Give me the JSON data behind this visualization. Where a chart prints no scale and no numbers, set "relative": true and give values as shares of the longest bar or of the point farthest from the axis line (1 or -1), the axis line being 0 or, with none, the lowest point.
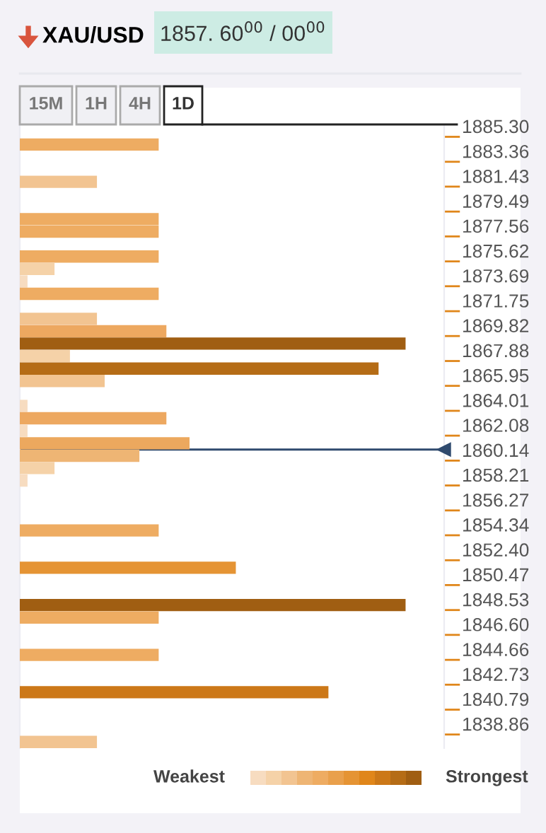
{
  "chart_data": {
    "type": "bar",
    "orientation": "horizontal",
    "relative": true,
    "title": "XAU/USD",
    "subtitle": "1857. 60$^{00}$ / 00$^{00}$",
    "annotations": [
      "15M",
      "1H",
      "4H",
      "1D",
      "Weakest",
      "Strongest"
    ],
    "x": [
      1884.7,
      1881.8,
      1878.9,
      1877.93,
      1876.0,
      1875.03,
      1874.06,
      1873.1,
      1871.16,
      1870.2,
      1869.23,
      1868.26,
      1867.29,
      1866.33,
      1864.39,
      1863.43,
      1862.46,
      1861.49,
      1860.52,
      1859.56,
      1858.59,
      1854.72,
      1851.82,
      1848.92,
      1847.95,
      1845.05,
      1842.15,
      1838.28
    ],
    "values": [
      0.36,
      0.2,
      0.36,
      0.36,
      0.36,
      0.09,
      0.02,
      0.36,
      0.2,
      0.38,
      1,
      0.13,
      0.93,
      0.22,
      0.02,
      0.38,
      0.02,
      0.44,
      0.31,
      0.09,
      0.02,
      0.36,
      0.56,
      1,
      0.36,
      0.36,
      0.8,
      0.2
    ],
    "colors": [
      "#eeac62",
      "#f2c491",
      "#eeac62",
      "#eeac62",
      "#eeac62",
      "#f5d2a8",
      "#f7dcc0",
      "#eeac62",
      "#f2c491",
      "#eda860",
      "#a05e12",
      "#f5d2a8",
      "#b56c16",
      "#f2c491",
      "#f7dcc0",
      "#eda860",
      "#f7dcc0",
      "#eca85e",
      "#eeb574",
      "#f5d2a8",
      "#f7dcc0",
      "#eeac62",
      "#e59434",
      "#a05e12",
      "#eeac62",
      "#eeac62",
      "#cc7818",
      "#f2c491"
    ],
    "ylim": [
      1837.8,
      1886.15
    ],
    "yticks": [
      {
        "value": 1885.3,
        "label": "1885.30"
      },
      1883.36,
      1881.43,
      1879.49,
      1877.56,
      1875.62,
      1873.69,
      1871.75,
      1869.82,
      1867.88,
      1865.95,
      1864.01,
      1862.08,
      1860.14,
      1858.21,
      1856.27,
      1854.34,
      {
        "value": 1852.4,
        "label": "1852.40"
      },
      1850.47,
      1848.53,
      {
        "value": 1846.6,
        "label": "1846.60"
      },
      1844.66,
      1842.73,
      1840.79,
      1838.86
    ],
    "ref_lines": [
      {
        "axis": "y",
        "value": 1861.0,
        "color": "#2f4a6e"
      }
    ],
    "grid": false
  }
}
